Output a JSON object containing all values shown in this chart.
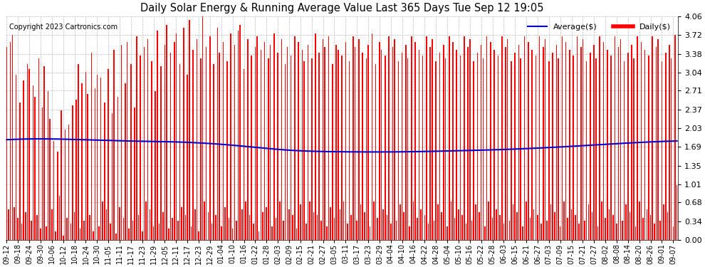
{
  "title": "Daily Solar Energy & Running Average Value Last 365 Days Tue Sep 12 19:05",
  "copyright": "Copyright 2023 Cartronics.com",
  "legend_avg": "Average($)",
  "legend_daily": "Daily($)",
  "ylim": [
    0.0,
    4.06
  ],
  "yticks": [
    0.0,
    0.34,
    0.68,
    1.01,
    1.35,
    1.69,
    2.03,
    2.37,
    2.71,
    3.04,
    3.38,
    3.72,
    4.06
  ],
  "bar_color": "#ff0000",
  "avg_color": "#0000cc",
  "background_color": "#ffffff",
  "grid_color": "#bbbbbb",
  "bar_values": [
    3.5,
    0.55,
    3.6,
    3.72,
    0.6,
    3.0,
    0.4,
    2.5,
    0.3,
    2.9,
    0.5,
    3.2,
    3.1,
    0.35,
    2.8,
    2.6,
    0.45,
    3.3,
    0.2,
    2.4,
    3.15,
    0.25,
    2.7,
    2.2,
    0.55,
    1.8,
    0.15,
    1.6,
    0.8,
    2.35,
    0.08,
    2.0,
    0.4,
    2.1,
    0.3,
    2.45,
    0.5,
    2.55,
    3.2,
    0.2,
    2.85,
    0.35,
    3.05,
    2.65,
    0.45,
    3.4,
    0.15,
    2.75,
    3.0,
    0.25,
    2.95,
    0.7,
    2.5,
    0.55,
    3.1,
    0.3,
    2.3,
    3.45,
    0.12,
    2.6,
    0.6,
    3.55,
    0.4,
    2.85,
    3.6,
    0.2,
    3.2,
    0.35,
    2.4,
    3.7,
    0.45,
    3.35,
    0.15,
    3.5,
    0.7,
    3.65,
    0.55,
    3.25,
    0.25,
    2.7,
    3.8,
    0.3,
    3.15,
    0.5,
    3.55,
    3.9,
    0.2,
    3.4,
    0.4,
    3.6,
    3.75,
    0.35,
    3.2,
    0.6,
    3.85,
    0.45,
    3.0,
    4.0,
    0.25,
    3.45,
    0.55,
    3.65,
    0.15,
    3.3,
    4.06,
    0.7,
    3.5,
    0.5,
    3.7,
    0.3,
    3.2,
    0.45,
    3.85,
    3.4,
    0.25,
    3.6,
    0.6,
    3.25,
    0.4,
    3.75,
    0.2,
    3.55,
    0.35,
    3.8,
    3.9,
    0.55,
    3.1,
    0.7,
    3.65,
    0.45,
    3.35,
    0.3,
    3.5,
    3.7,
    0.15,
    3.45,
    0.5,
    3.6,
    0.6,
    3.3,
    3.55,
    0.25,
    3.75,
    0.4,
    3.4,
    0.7,
    3.65,
    0.35,
    3.2,
    3.5,
    0.55,
    3.35,
    0.45,
    3.7,
    0.2,
    3.6,
    0.65,
    3.45,
    3.25,
    0.3,
    3.55,
    0.7,
    3.3,
    0.5,
    3.75,
    0.45,
    3.4,
    0.35,
    3.65,
    3.5,
    0.25,
    3.7,
    0.6,
    3.2,
    0.4,
    3.55,
    3.45,
    0.55,
    3.35,
    0.7,
    3.6,
    0.3,
    3.25,
    0.45,
    3.7,
    3.5,
    0.35,
    3.65,
    0.65,
    3.4,
    0.5,
    3.3,
    3.55,
    0.25,
    3.75,
    0.7,
    3.2,
    0.4,
    3.6,
    3.45,
    0.55,
    3.35,
    0.45,
    3.7,
    0.3,
    3.5,
    3.65,
    0.35,
    3.25,
    0.65,
    3.4,
    0.5,
    3.55,
    3.3,
    0.25,
    3.7,
    0.7,
    3.6,
    0.4,
    3.45,
    0.55,
    3.35,
    0.45,
    3.7,
    0.3,
    3.5,
    3.65,
    0.35,
    3.25,
    0.65,
    3.4,
    0.5,
    3.55,
    3.3,
    0.25,
    3.7,
    0.7,
    3.6,
    0.4,
    3.45,
    0.55,
    3.35,
    0.45,
    3.7,
    0.3,
    3.5,
    3.65,
    0.35,
    3.25,
    0.65,
    3.4,
    0.5,
    3.55,
    3.3,
    0.25,
    3.7,
    0.7,
    3.6,
    0.4,
    3.45,
    0.55,
    3.35,
    0.45,
    3.7,
    0.3,
    3.5,
    3.65,
    0.35,
    3.25,
    0.65,
    3.4,
    0.5,
    3.55,
    3.3,
    0.25,
    3.7,
    0.7,
    3.6,
    0.4,
    3.45,
    0.55,
    3.35,
    0.45,
    3.7,
    0.3,
    3.5,
    3.65,
    0.35,
    3.25,
    0.65,
    3.4,
    0.5,
    3.55,
    3.3,
    0.25,
    3.7,
    0.7,
    3.6,
    0.4,
    3.45,
    0.55,
    3.35,
    0.45,
    3.7,
    0.3,
    3.5,
    3.65,
    0.35,
    3.25,
    0.65,
    3.4,
    0.5,
    3.55,
    3.3,
    0.25,
    3.7,
    0.7,
    3.6,
    0.4,
    3.45,
    0.55,
    3.35,
    0.45,
    3.7,
    0.3,
    3.5,
    3.65,
    0.35,
    3.25,
    0.65,
    3.4,
    0.5,
    3.55,
    3.3,
    0.25,
    3.7,
    0.7,
    3.6,
    0.4,
    3.45,
    0.55,
    3.35,
    0.45,
    3.7,
    0.3,
    3.5,
    3.65,
    0.35,
    3.25,
    0.65,
    3.4,
    0.5,
    3.55,
    3.3,
    0.25,
    3.72,
    1.0
  ],
  "x_labels": [
    "09-12",
    "09-18",
    "09-24",
    "09-30",
    "10-06",
    "10-12",
    "10-18",
    "10-24",
    "10-30",
    "11-05",
    "11-11",
    "11-17",
    "11-23",
    "11-29",
    "12-05",
    "12-11",
    "12-17",
    "12-23",
    "12-29",
    "01-04",
    "01-10",
    "01-16",
    "01-22",
    "01-28",
    "02-03",
    "02-09",
    "02-15",
    "02-21",
    "02-27",
    "03-05",
    "03-11",
    "03-17",
    "03-23",
    "03-29",
    "04-04",
    "04-10",
    "04-16",
    "04-22",
    "04-28",
    "05-04",
    "05-10",
    "05-16",
    "05-22",
    "05-28",
    "06-03",
    "06-09",
    "06-15",
    "06-21",
    "06-27",
    "07-03",
    "07-09",
    "07-15",
    "07-21",
    "07-27",
    "08-02",
    "08-08",
    "08-14",
    "08-20",
    "08-26",
    "09-01",
    "09-07"
  ],
  "avg_curve_x": [
    0,
    30,
    60,
    90,
    120,
    150,
    180,
    210,
    240,
    270,
    300,
    330,
    360
  ],
  "avg_curve_y": [
    1.82,
    1.83,
    1.8,
    1.78,
    1.72,
    1.63,
    1.6,
    1.6,
    1.62,
    1.65,
    1.7,
    1.76,
    1.8
  ]
}
